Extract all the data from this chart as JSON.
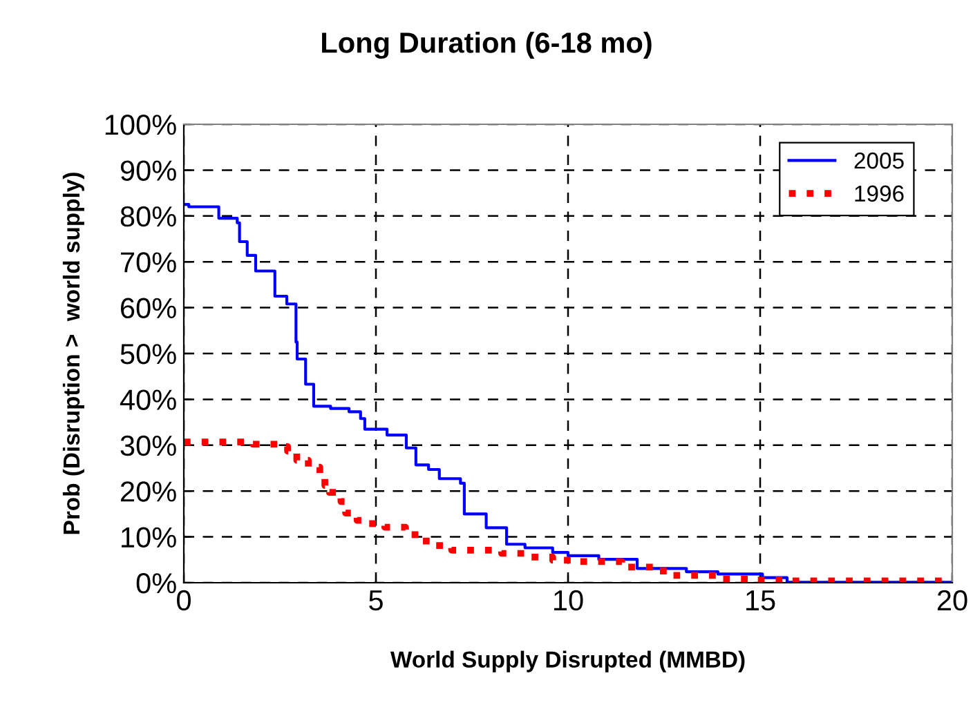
{
  "chart_data": {
    "type": "step",
    "title": "Long Duration (6-18 mo)",
    "xlabel": "World Supply Disrupted (MMBD)",
    "ylabel": "Prob (Disruption >  world supply)",
    "xlim": [
      0,
      20
    ],
    "xticks": [
      0,
      5,
      10,
      15,
      20
    ],
    "ylim": [
      0,
      100
    ],
    "yticks": [
      {
        "value": 0,
        "label": "0%"
      },
      {
        "value": 10,
        "label": "10%"
      },
      {
        "value": 20,
        "label": "20%"
      },
      {
        "value": 30,
        "label": "30%"
      },
      {
        "value": 40,
        "label": "40%"
      },
      {
        "value": 50,
        "label": "50%"
      },
      {
        "value": 60,
        "label": "60%"
      },
      {
        "value": 70,
        "label": "70%"
      },
      {
        "value": 80,
        "label": "80%"
      },
      {
        "value": 90,
        "label": "90%"
      },
      {
        "value": 100,
        "label": "100%"
      }
    ],
    "grid": true,
    "legend": "top right",
    "series": [
      {
        "name": "2005",
        "color": "#0000ff",
        "line_style": "solid",
        "x": [
          0,
          0.13,
          0.91,
          1.39,
          1.45,
          1.65,
          1.87,
          2.37,
          2.68,
          2.92,
          2.95,
          3.17,
          3.38,
          3.82,
          4.3,
          4.6,
          4.71,
          5.29,
          5.79,
          6.04,
          6.37,
          6.65,
          7.2,
          7.3,
          7.87,
          8.4,
          8.88,
          9.6,
          10.0,
          10.8,
          11.8,
          13.08,
          13.9,
          15.06,
          15.7,
          20
        ],
        "values": [
          82.5,
          82,
          79.5,
          78.5,
          74.4,
          71.4,
          68,
          62.5,
          60.8,
          52.5,
          48.8,
          43.3,
          38.5,
          38,
          37.3,
          35.8,
          33.5,
          32.2,
          29.4,
          25.7,
          24.7,
          22.7,
          21.7,
          15,
          12,
          8.4,
          7.6,
          6.6,
          5.9,
          5.1,
          3.1,
          2.4,
          1.9,
          1.1,
          0.1,
          0.1
        ]
      },
      {
        "name": "1996",
        "color": "#ff0000",
        "line_style": "dotted",
        "x": [
          0,
          1.8,
          2.46,
          2.7,
          2.94,
          3.24,
          3.54,
          3.67,
          3.79,
          4.09,
          4.21,
          4.51,
          4.75,
          5.23,
          5.77,
          6.31,
          6.97,
          8.27,
          9.0,
          9.6,
          10.2,
          11.4,
          12.48,
          13.86,
          14.88,
          15.6,
          20
        ],
        "values": [
          30.7,
          30.2,
          29.7,
          28.7,
          26.7,
          25.2,
          23.7,
          21.2,
          19.7,
          17.7,
          15.2,
          13.6,
          12.9,
          12.1,
          10.5,
          8.1,
          7.1,
          6.4,
          5.6,
          4.9,
          4.6,
          3.4,
          1.6,
          0.8,
          0.6,
          0.4,
          0.4
        ]
      }
    ]
  }
}
